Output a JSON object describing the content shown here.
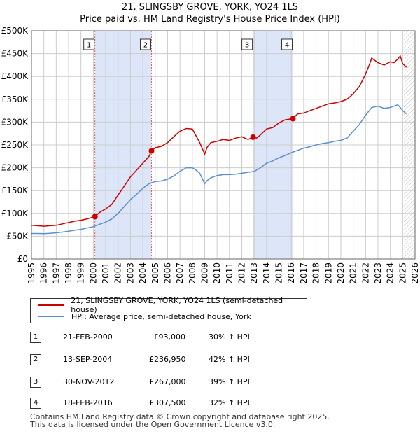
{
  "title": "21, SLINGSBY GROVE, YORK, YO24 1LS",
  "subtitle": "Price paid vs. HM Land Registry's House Price Index (HPI)",
  "colors": {
    "property": "#cc0000",
    "hpi": "#5b8fd0",
    "shade": "#dde6f8",
    "marker_border": "#cc0000"
  },
  "chart_data": {
    "type": "line",
    "ylim": [
      0,
      500000
    ],
    "xlim": [
      1995,
      2026
    ],
    "y_ticks": [
      "£0",
      "£50K",
      "£100K",
      "£150K",
      "£200K",
      "£250K",
      "£300K",
      "£350K",
      "£400K",
      "£450K",
      "£500K"
    ],
    "x_ticks": [
      "1995",
      "1996",
      "1997",
      "1998",
      "1999",
      "2000",
      "2001",
      "2002",
      "2003",
      "2004",
      "2005",
      "2006",
      "2007",
      "2008",
      "2009",
      "2010",
      "2011",
      "2012",
      "2013",
      "2014",
      "2015",
      "2016",
      "2017",
      "2018",
      "2019",
      "2020",
      "2021",
      "2022",
      "2023",
      "2024",
      "2025",
      "2026"
    ],
    "grid": true,
    "shaded_periods": [
      [
        2000.13,
        2004.7
      ],
      [
        2012.91,
        2016.13
      ]
    ],
    "forecast_start": 2025.1,
    "series": [
      {
        "name": "21, SLINGSBY GROVE, YORK, YO24 1LS (semi-detached house)",
        "color": "#cc0000",
        "x": [
          1995,
          1995.5,
          1996,
          1996.5,
          1997,
          1997.5,
          1998,
          1998.5,
          1999,
          1999.5,
          2000.13,
          2000.5,
          2001,
          2001.5,
          2002,
          2002.5,
          2003,
          2003.5,
          2004,
          2004.5,
          2004.7,
          2005,
          2005.5,
          2006,
          2006.5,
          2007,
          2007.5,
          2008,
          2008.3,
          2008.6,
          2009,
          2009.2,
          2009.5,
          2010,
          2010.5,
          2011,
          2011.5,
          2012,
          2012.5,
          2012.91,
          2013.2,
          2013.5,
          2014,
          2014.5,
          2015,
          2015.5,
          2016.13,
          2016.5,
          2017,
          2017.5,
          2018,
          2018.5,
          2019,
          2019.5,
          2020,
          2020.5,
          2021,
          2021.5,
          2022,
          2022.3,
          2022.5,
          2023,
          2023.5,
          2024,
          2024.3,
          2024.6,
          2024.8,
          2025,
          2025.3
        ],
        "y": [
          74000,
          73000,
          72000,
          73000,
          74000,
          77000,
          80000,
          83000,
          85000,
          88000,
          93000,
          102000,
          110000,
          120000,
          140000,
          160000,
          180000,
          195000,
          210000,
          225000,
          236950,
          244000,
          247000,
          255000,
          268000,
          280000,
          286000,
          285000,
          270000,
          255000,
          230000,
          245000,
          255000,
          258000,
          262000,
          260000,
          265000,
          268000,
          262000,
          267000,
          265000,
          272000,
          285000,
          288000,
          298000,
          305000,
          307500,
          318000,
          320000,
          325000,
          330000,
          335000,
          340000,
          342000,
          345000,
          350000,
          362000,
          378000,
          405000,
          425000,
          440000,
          430000,
          425000,
          432000,
          430000,
          438000,
          445000,
          428000,
          420000
        ]
      },
      {
        "name": "HPI: Average price, semi-detached house, York",
        "color": "#5b8fd0",
        "x": [
          1995,
          1995.5,
          1996,
          1996.5,
          1997,
          1997.5,
          1998,
          1998.5,
          1999,
          1999.5,
          2000,
          2000.5,
          2001,
          2001.5,
          2002,
          2002.5,
          2003,
          2003.5,
          2004,
          2004.5,
          2005,
          2005.5,
          2006,
          2006.5,
          2007,
          2007.5,
          2008,
          2008.3,
          2008.6,
          2009,
          2009.2,
          2009.5,
          2010,
          2010.5,
          2011,
          2011.5,
          2012,
          2012.5,
          2013,
          2013.5,
          2014,
          2014.5,
          2015,
          2015.5,
          2016,
          2016.5,
          2017,
          2017.5,
          2018,
          2018.5,
          2019,
          2019.5,
          2020,
          2020.5,
          2021,
          2021.5,
          2022,
          2022.5,
          2023,
          2023.5,
          2024,
          2024.3,
          2024.6,
          2024.8,
          2025,
          2025.3
        ],
        "y": [
          56000,
          56000,
          55500,
          56500,
          57500,
          59000,
          61000,
          63000,
          65000,
          68000,
          71000,
          76000,
          81000,
          88000,
          100000,
          115000,
          130000,
          142000,
          155000,
          165000,
          170000,
          171000,
          175000,
          182000,
          192000,
          200000,
          200000,
          195000,
          188000,
          165000,
          172000,
          178000,
          183000,
          185000,
          185000,
          186000,
          188000,
          190000,
          192000,
          200000,
          210000,
          215000,
          222000,
          227000,
          233000,
          238000,
          243000,
          246000,
          250000,
          253000,
          255000,
          258000,
          260000,
          265000,
          280000,
          295000,
          315000,
          332000,
          335000,
          330000,
          332000,
          335000,
          338000,
          332000,
          325000,
          318000
        ]
      }
    ],
    "markers": [
      {
        "label": "1",
        "x": 2000.13,
        "y": 93000
      },
      {
        "label": "2",
        "x": 2004.7,
        "y": 236950
      },
      {
        "label": "3",
        "x": 2012.91,
        "y": 267000
      },
      {
        "label": "4",
        "x": 2016.13,
        "y": 307500
      }
    ]
  },
  "legend": {
    "property": "21, SLINGSBY GROVE, YORK, YO24 1LS (semi-detached house)",
    "hpi": "HPI: Average price, semi-detached house, York"
  },
  "sales": [
    {
      "num": "1",
      "date": "21-FEB-2000",
      "price": "£93,000",
      "hpi": "30% ↑ HPI"
    },
    {
      "num": "2",
      "date": "13-SEP-2004",
      "price": "£236,950",
      "hpi": "42% ↑ HPI"
    },
    {
      "num": "3",
      "date": "30-NOV-2012",
      "price": "£267,000",
      "hpi": "39% ↑ HPI"
    },
    {
      "num": "4",
      "date": "18-FEB-2016",
      "price": "£307,500",
      "hpi": "32% ↑ HPI"
    }
  ],
  "footer": {
    "line1": "Contains HM Land Registry data © Crown copyright and database right 2025.",
    "line2": "This data is licensed under the Open Government Licence v3.0."
  }
}
